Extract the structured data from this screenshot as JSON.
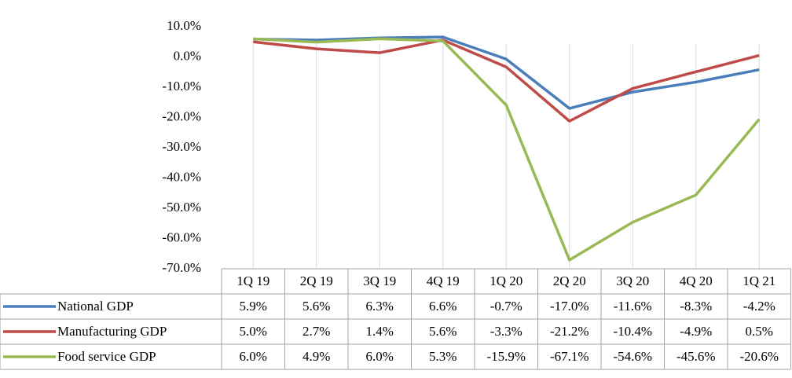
{
  "chart_data": {
    "type": "line",
    "categories": [
      "1Q 19",
      "2Q 19",
      "3Q 19",
      "4Q 19",
      "1Q 20",
      "2Q 20",
      "3Q 20",
      "4Q 20",
      "1Q 21"
    ],
    "series": [
      {
        "name": "National GDP",
        "color": "#4a7ebb",
        "values": [
          5.9,
          5.6,
          6.3,
          6.6,
          -0.7,
          -17.0,
          -11.6,
          -8.3,
          -4.2
        ],
        "value_labels": [
          "5.9%",
          "5.6%",
          "6.3%",
          "6.6%",
          "-0.7%",
          "-17.0%",
          "-11.6%",
          "-8.3%",
          "-4.2%"
        ]
      },
      {
        "name": "Manufacturing GDP",
        "color": "#be4b48",
        "values": [
          5.0,
          2.7,
          1.4,
          5.6,
          -3.3,
          -21.2,
          -10.4,
          -4.9,
          0.5
        ],
        "value_labels": [
          "5.0%",
          "2.7%",
          "1.4%",
          "5.6%",
          "-3.3%",
          "-21.2%",
          "-10.4%",
          "-4.9%",
          "0.5%"
        ]
      },
      {
        "name": "Food service GDP",
        "color": "#98b954",
        "values": [
          6.0,
          4.9,
          6.0,
          5.3,
          -15.9,
          -67.1,
          -54.6,
          -45.6,
          -20.6
        ],
        "value_labels": [
          "6.0%",
          "4.9%",
          "6.0%",
          "5.3%",
          "-15.9%",
          "-67.1%",
          "-54.6%",
          "-45.6%",
          "-20.6%"
        ]
      }
    ],
    "ylim": [
      -70,
      10
    ],
    "yticks": [
      {
        "value": 10,
        "label": "10.0%"
      },
      {
        "value": 0,
        "label": "0.0%"
      },
      {
        "value": -10,
        "label": "-10.0%"
      },
      {
        "value": -20,
        "label": "-20.0%"
      },
      {
        "value": -30,
        "label": "-30.0%"
      },
      {
        "value": -40,
        "label": "-40.0%"
      },
      {
        "value": -50,
        "label": "-50.0%"
      },
      {
        "value": -60,
        "label": "-60.0%"
      },
      {
        "value": -70,
        "label": "-70.0%"
      }
    ],
    "grid": true
  }
}
